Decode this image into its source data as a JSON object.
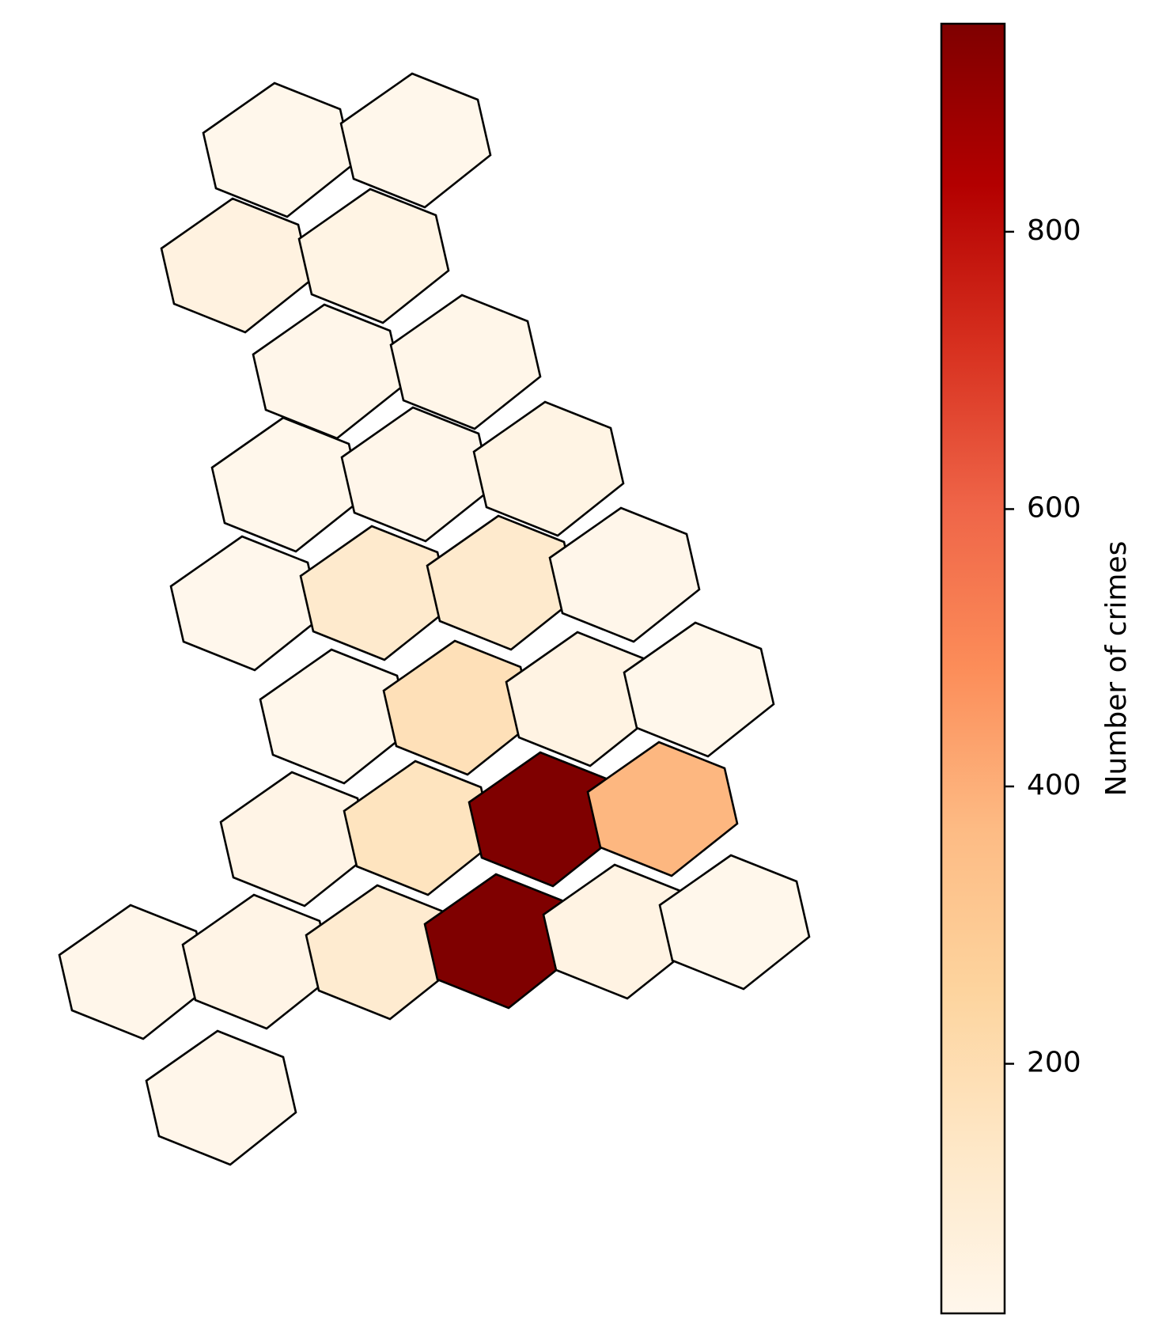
{
  "chart_data": {
    "type": "heatmap",
    "subtype": "hexbin",
    "title": "",
    "colorbar": {
      "label": "Number of crimes",
      "colormap": "OrRd",
      "min": 20,
      "max": 950,
      "ticks": [
        200,
        400,
        600,
        800
      ],
      "tick_labels": [
        "200",
        "400",
        "600",
        "800"
      ]
    },
    "colormap_stops": [
      {
        "v": 0.0,
        "color": "#fff7ec"
      },
      {
        "v": 0.125,
        "color": "#fee8c8"
      },
      {
        "v": 0.25,
        "color": "#fdd49e"
      },
      {
        "v": 0.375,
        "color": "#fdbb84"
      },
      {
        "v": 0.5,
        "color": "#fc8d59"
      },
      {
        "v": 0.625,
        "color": "#ef6548"
      },
      {
        "v": 0.75,
        "color": "#d7301f"
      },
      {
        "v": 0.875,
        "color": "#b30000"
      },
      {
        "v": 1.0,
        "color": "#7f0000"
      }
    ],
    "cells": [
      {
        "name": "r0-c0",
        "value": 22
      },
      {
        "name": "r0-c1",
        "value": 22
      },
      {
        "name": "r1-c0",
        "value": 60
      },
      {
        "name": "r1-c1",
        "value": 45
      },
      {
        "name": "r2-c0",
        "value": 25
      },
      {
        "name": "r2-c1",
        "value": 30
      },
      {
        "name": "r3-c0",
        "value": 22
      },
      {
        "name": "r3-c1",
        "value": 28
      },
      {
        "name": "r3-c2",
        "value": 45
      },
      {
        "name": "r4-c0",
        "value": 20
      },
      {
        "name": "r4-c1",
        "value": 120
      },
      {
        "name": "r4-c2",
        "value": 120
      },
      {
        "name": "r4-c3",
        "value": 25
      },
      {
        "name": "r5-c0",
        "value": 22
      },
      {
        "name": "r5-c1",
        "value": 180
      },
      {
        "name": "r5-c2",
        "value": 50
      },
      {
        "name": "r5-c3",
        "value": 22
      },
      {
        "name": "r6-c0",
        "value": 40
      },
      {
        "name": "r6-c1",
        "value": 160
      },
      {
        "name": "r6-c2",
        "value": 950
      },
      {
        "name": "r6-c3",
        "value": 380
      },
      {
        "name": "r7-c0",
        "value": 28
      },
      {
        "name": "r7-c1",
        "value": 40
      },
      {
        "name": "r7-c2",
        "value": 110
      },
      {
        "name": "r7-c3",
        "value": 950
      },
      {
        "name": "r7-c4",
        "value": 50
      },
      {
        "name": "r7-c5",
        "value": 22
      },
      {
        "name": "r8-c0",
        "value": 25
      }
    ]
  }
}
